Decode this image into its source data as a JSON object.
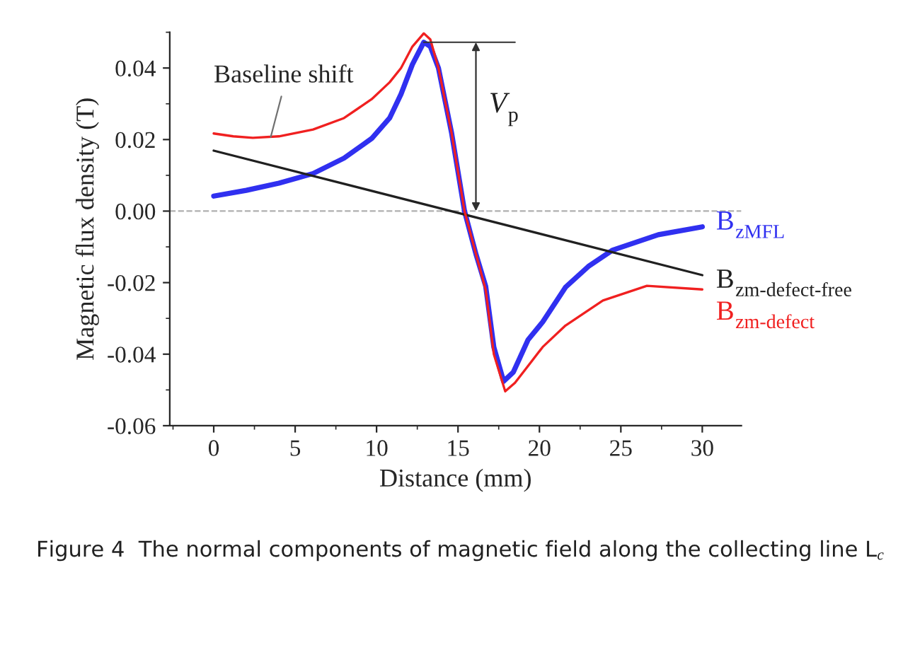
{
  "chart_data": {
    "type": "line",
    "xlabel": "Distance (mm)",
    "ylabel": "Magnetic flux density (T)",
    "xlim": [
      -2.7,
      32.4
    ],
    "ylim": [
      -0.06,
      0.05
    ],
    "xticks": [
      0,
      5,
      10,
      15,
      20,
      25,
      30
    ],
    "yticks": [
      {
        "value": -0.06,
        "label": "-0.06"
      },
      {
        "value": -0.04,
        "label": "-0.04"
      },
      {
        "value": -0.02,
        "label": "-0.02"
      },
      {
        "value": 0,
        "label": "0.00"
      },
      {
        "value": 0.02,
        "label": "0.02"
      },
      {
        "value": 0.04,
        "label": "0.04"
      }
    ],
    "grid": false,
    "legend": false,
    "marker": "none",
    "line_style": "solid",
    "series": [
      {
        "name": "B$_{zMFL}$",
        "color": "#3030f0",
        "x": [
          0,
          2,
          4,
          6.1,
          8,
          9.7,
          10.8,
          11.5,
          12.2,
          12.9,
          13.3,
          13.8,
          14.6,
          15.4,
          16.1,
          16.7,
          17.2,
          17.8,
          18.4,
          19.3,
          20.2,
          21.6,
          23,
          24.5,
          27.3,
          30
        ],
        "values": [
          0.0042,
          0.0058,
          0.0078,
          0.0105,
          0.0148,
          0.0203,
          0.026,
          0.0327,
          0.041,
          0.0472,
          0.046,
          0.04,
          0.022,
          0.0,
          -0.012,
          -0.021,
          -0.038,
          -0.0476,
          -0.045,
          -0.036,
          -0.031,
          -0.0213,
          -0.0155,
          -0.0109,
          -0.0066,
          -0.0044
        ]
      },
      {
        "name": "B$_{zm-defect-free}$",
        "color": "#202020",
        "x": [
          0,
          30
        ],
        "values": [
          0.0169,
          -0.0179
        ]
      },
      {
        "name": "B$_{zm-defect}$",
        "color": "#f02020",
        "x": [
          0,
          1.2,
          2.4,
          4,
          6.1,
          8,
          9.7,
          10.8,
          11.5,
          12.2,
          12.9,
          13.3,
          13.8,
          14.6,
          15.4,
          16.1,
          16.7,
          17.2,
          17.9,
          18.5,
          19.3,
          20.2,
          21.6,
          23.9,
          26.6,
          30
        ],
        "values": [
          0.0217,
          0.0209,
          0.0205,
          0.0209,
          0.0228,
          0.026,
          0.0313,
          0.036,
          0.04,
          0.046,
          0.0497,
          0.048,
          0.04,
          0.022,
          0.0,
          -0.012,
          -0.022,
          -0.04,
          -0.0504,
          -0.048,
          -0.0433,
          -0.038,
          -0.032,
          -0.025,
          -0.0209,
          -0.0219
        ]
      }
    ],
    "ref_lines": [
      {
        "axis": "y",
        "value": 0,
        "color": "#b0b0b0",
        "line_style": "dashed"
      }
    ],
    "annotations": [
      {
        "text": "Baseline shift",
        "x": 3.5,
        "y": 0.0207
      },
      "V$_{p}$",
      "Figure 4  The normal components of magnetic field along the collecting line L$_{c}$"
    ]
  }
}
